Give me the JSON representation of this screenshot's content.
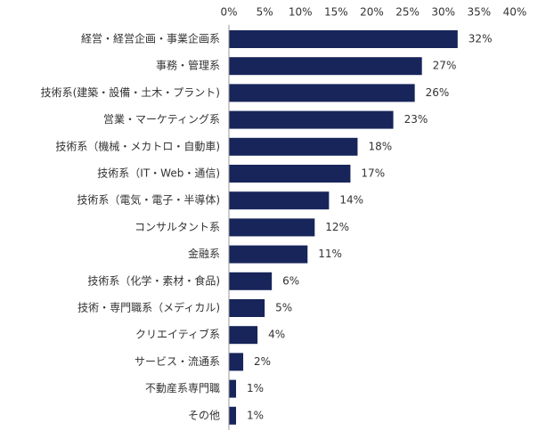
{
  "chart_data": {
    "type": "bar",
    "orientation": "horizontal",
    "categories": [
      "経営・経営企画・事業企画系",
      "事務・管理系",
      "技術系(建築・設備・土木・プラント)",
      "営業・マーケティング系",
      "技術系（機械・メカトロ・自動車)",
      "技術系（IT・Web・通信)",
      "技術系（電気・電子・半導体)",
      "コンサルタント系",
      "金融系",
      "技術系（化学・素材・食品)",
      "技術・専門職系（メディカル)",
      "クリエイティブ系",
      "サービス・流通系",
      "不動産系専門職",
      "その他"
    ],
    "values": [
      32,
      27,
      26,
      23,
      18,
      17,
      14,
      12,
      11,
      6,
      5,
      4,
      2,
      1,
      1
    ],
    "value_labels": [
      "32%",
      "27%",
      "26%",
      "23%",
      "18%",
      "17%",
      "14%",
      "12%",
      "11%",
      "6%",
      "5%",
      "4%",
      "2%",
      "1%",
      "1%"
    ],
    "xlim": [
      0,
      40
    ],
    "x_ticks": [
      0,
      5,
      10,
      15,
      20,
      25,
      30,
      35,
      40
    ],
    "x_tick_labels": [
      "0%",
      "5%",
      "10%",
      "15%",
      "20%",
      "25%",
      "30%",
      "35%",
      "40%"
    ],
    "axis_position": "top",
    "grid": false,
    "bar_color": "#17255a"
  }
}
